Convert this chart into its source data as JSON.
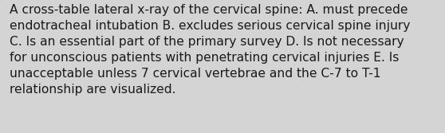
{
  "lines": [
    "A cross-table lateral x-ray of the cervical spine: A. must precede",
    "endotracheal intubation B. excludes serious cervical spine injury",
    "C. Is an essential part of the primary survey D. Is not necessary",
    "for unconscious patients with penetrating cervical injuries E. Is",
    "unacceptable unless 7 cervical vertebrae and the C-7 to T-1",
    "relationship are visualized."
  ],
  "background_color": "#d4d4d4",
  "text_color": "#1a1a1a",
  "font_size": 11.2,
  "fig_width": 5.58,
  "fig_height": 1.67,
  "dpi": 100
}
